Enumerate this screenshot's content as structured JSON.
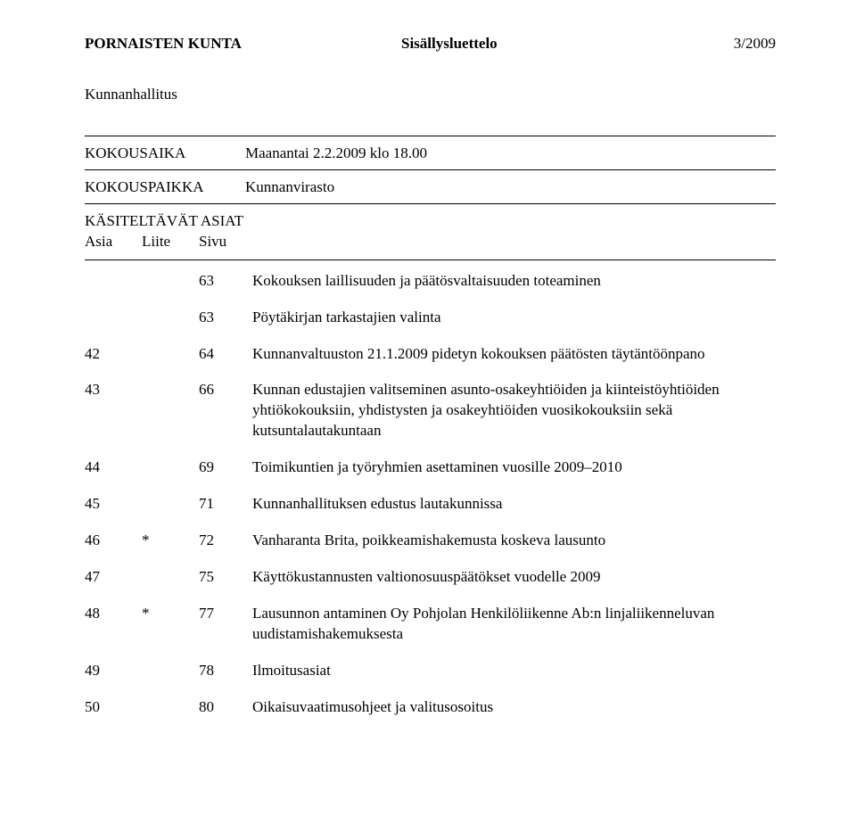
{
  "header": {
    "left": "PORNAISTEN KUNTA",
    "center": "Sisällysluettelo",
    "right": "3/2009"
  },
  "subheader": "Kunnanhallitus",
  "meta": {
    "kokousaika_label": "KOKOUSAIKA",
    "kokousaika_value": "Maanantai 2.2.2009 klo 18.00",
    "kokouspaikka_label": "KOKOUSPAIKKA",
    "kokouspaikka_value": "Kunnanvirasto",
    "sectionLabel": "KÄSITELTÄVÄT ASIAT",
    "col1": "Asia",
    "col2": "Liite",
    "col3": "Sivu"
  },
  "items": [
    {
      "asia": "",
      "liite": "",
      "sivu": "63",
      "desc": "Kokouksen laillisuuden ja päätösvaltaisuuden toteaminen"
    },
    {
      "asia": "",
      "liite": "",
      "sivu": "63",
      "desc": "Pöytäkirjan tarkastajien valinta"
    },
    {
      "asia": "42",
      "liite": "",
      "sivu": "64",
      "desc": "Kunnanvaltuuston 21.1.2009 pidetyn kokouksen päätösten täytäntöönpano"
    },
    {
      "asia": "43",
      "liite": "",
      "sivu": "66",
      "desc": "Kunnan edustajien valitseminen asunto-osakeyhtiöiden ja kiinteistöyhtiöiden yhtiökokouksiin, yhdistysten ja osakeyhtiöiden vuosikokouksiin sekä kutsuntalautakuntaan"
    },
    {
      "asia": "44",
      "liite": "",
      "sivu": "69",
      "desc": "Toimikuntien ja työryhmien asettaminen vuosille 2009–2010"
    },
    {
      "asia": "45",
      "liite": "",
      "sivu": "71",
      "desc": "Kunnanhallituksen edustus lautakunnissa"
    },
    {
      "asia": "46",
      "liite": "*",
      "sivu": "72",
      "desc": "Vanharanta Brita, poikkeamishakemusta koskeva lausunto"
    },
    {
      "asia": "47",
      "liite": "",
      "sivu": "75",
      "desc": "Käyttökustannusten valtionosuuspäätökset vuodelle 2009"
    },
    {
      "asia": "48",
      "liite": "*",
      "sivu": "77",
      "desc": "Lausunnon antaminen Oy Pohjolan Henkilöliikenne Ab:n linjaliikenneluvan uudistamishakemuksesta"
    },
    {
      "asia": "49",
      "liite": "",
      "sivu": "78",
      "desc": "Ilmoitusasiat"
    },
    {
      "asia": "50",
      "liite": "",
      "sivu": "80",
      "desc": "Oikaisuvaatimusohjeet ja valitusosoitus"
    }
  ]
}
